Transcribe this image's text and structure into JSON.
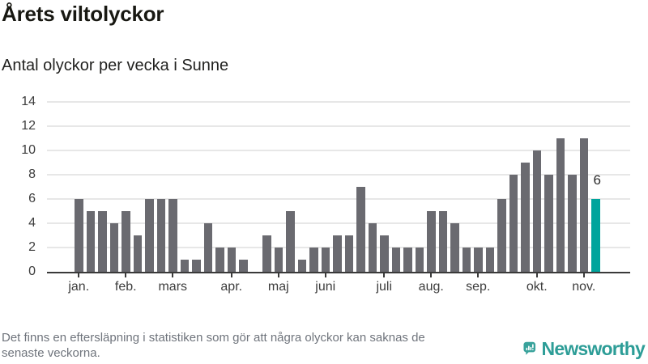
{
  "header": {
    "title": "Årets viltolyckor",
    "subtitle": "Antal olyckor per vecka i Sunne"
  },
  "chart_data": {
    "type": "bar",
    "title": "Årets viltolyckor",
    "subtitle": "Antal olyckor per vecka i Sunne",
    "ylabel": "",
    "xlabel": "",
    "ylim": [
      0,
      14
    ],
    "yticks": [
      0,
      2,
      4,
      6,
      8,
      10,
      12,
      14
    ],
    "grid": "horizontal",
    "values": [
      6,
      5,
      5,
      4,
      5,
      3,
      6,
      6,
      6,
      1,
      1,
      4,
      2,
      2,
      1,
      0,
      3,
      2,
      5,
      1,
      2,
      2,
      3,
      3,
      7,
      4,
      3,
      2,
      2,
      2,
      5,
      5,
      4,
      2,
      2,
      2,
      6,
      8,
      9,
      10,
      8,
      11,
      8,
      11,
      6
    ],
    "months": [
      {
        "label": "jan.",
        "week_index": 0
      },
      {
        "label": "feb.",
        "week_index": 4
      },
      {
        "label": "mars",
        "week_index": 8
      },
      {
        "label": "apr.",
        "week_index": 13
      },
      {
        "label": "maj",
        "week_index": 17
      },
      {
        "label": "juni",
        "week_index": 21
      },
      {
        "label": "juli",
        "week_index": 26
      },
      {
        "label": "aug.",
        "week_index": 30
      },
      {
        "label": "sep.",
        "week_index": 34
      },
      {
        "label": "okt.",
        "week_index": 39
      },
      {
        "label": "nov.",
        "week_index": 43
      }
    ],
    "highlight": {
      "index": 44,
      "value": 6,
      "label": "6"
    }
  },
  "footer": {
    "note_lines": [
      "Det finns en eftersläpning i statistiken som gör att några olyckor kan saknas de",
      "senaste veckorna."
    ],
    "brand": "Newsworthy"
  },
  "colors": {
    "bar": "#6a6a70",
    "highlight": "#00a49c",
    "brand_teal": "#2d9d97",
    "logo_icon": "#38a29b",
    "axis": "#3a3a3a",
    "gridline": "#e7e7e7"
  }
}
